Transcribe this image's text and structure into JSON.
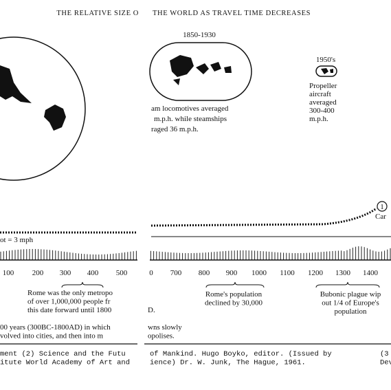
{
  "title": {
    "left": "THE RELATIVE SIZE O",
    "right": "THE WORLD AS TRAVEL TIME DECREASES"
  },
  "era_1850": {
    "label": "1850-1930",
    "lines": [
      "am locomotives averaged",
      "m.p.h. while steamships",
      "raged 36 m.p.h."
    ]
  },
  "era_1950": {
    "label": "1950's",
    "lines": [
      "Propeller",
      "aircraft",
      "averaged",
      "300-400",
      "m.p.h."
    ]
  },
  "timeline": {
    "left_label": "ot = 3 mph",
    "marker": "1",
    "marker_label": "Car",
    "left_axis": [
      "100",
      "200",
      "300",
      "400",
      "500"
    ],
    "right_axis": [
      "0",
      "700",
      "800",
      "900",
      "1000",
      "1100",
      "1200",
      "1300",
      "1400"
    ]
  },
  "notes": {
    "rome_left": [
      "Rome was the only metropo",
      "of over 1,000,000 people fr",
      "this date forward until 1800"
    ],
    "rome_right": [
      "Rome's population",
      "declined by 30,000"
    ],
    "fragment": "D.",
    "plague": [
      "Bubonic plague wip",
      "out 1/4 of Europe's",
      "population"
    ],
    "summary_left": [
      "00 years (300BC-1800AD) in which",
      "volved into cities, and then into m"
    ],
    "summary_right": [
      "wns slowly",
      "opolises."
    ]
  },
  "footnotes": {
    "left": [
      "ment  (2) Science and the Futu",
      "itute  World Academy of Art and"
    ],
    "right": [
      "of Mankind.  Hugo Boyko, editor.  (Issued by",
      "ience)  Dr. W. Junk,  The Hague, 1961."
    ],
    "edge": [
      "(3",
      "Dev"
    ]
  }
}
